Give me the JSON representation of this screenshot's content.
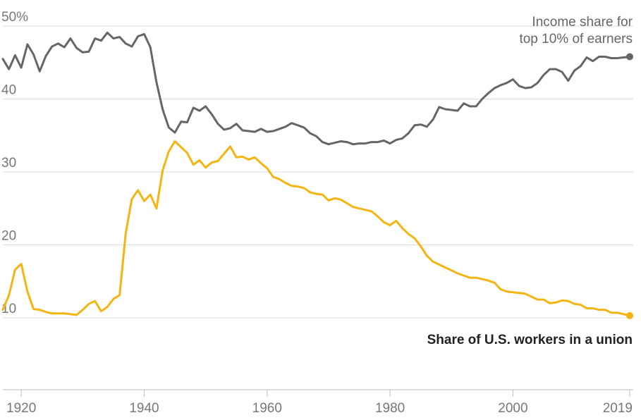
{
  "chart_data": {
    "type": "line",
    "title": "",
    "xlabel": "",
    "ylabel": "",
    "xlim": [
      1917,
      2019
    ],
    "ylim": [
      0,
      52
    ],
    "y_ticks": [
      {
        "value": 50,
        "label": "50%"
      },
      {
        "value": 40,
        "label": "40"
      },
      {
        "value": 30,
        "label": "30"
      },
      {
        "value": 20,
        "label": "20"
      },
      {
        "value": 10,
        "label": "10"
      }
    ],
    "x_ticks": [
      {
        "value": 1920,
        "label": "1920"
      },
      {
        "value": 1940,
        "label": "1940"
      },
      {
        "value": 1960,
        "label": "1960"
      },
      {
        "value": 1980,
        "label": "1980"
      },
      {
        "value": 2000,
        "label": "2000"
      },
      {
        "value": 2019,
        "label": "2019"
      }
    ],
    "grid": true,
    "series": [
      {
        "name": "Income share for top 10% of earners",
        "label_lines": [
          "Income share for",
          "top 10% of earners"
        ],
        "color": "#666666",
        "label_color": "#666666",
        "label_bold": false,
        "endpoint_marker": true,
        "x": [
          1917,
          1918,
          1919,
          1920,
          1921,
          1922,
          1923,
          1924,
          1925,
          1926,
          1927,
          1928,
          1929,
          1930,
          1931,
          1932,
          1933,
          1934,
          1935,
          1936,
          1937,
          1938,
          1939,
          1940,
          1941,
          1942,
          1943,
          1944,
          1945,
          1946,
          1947,
          1948,
          1949,
          1950,
          1951,
          1952,
          1953,
          1954,
          1955,
          1956,
          1957,
          1958,
          1959,
          1960,
          1961,
          1962,
          1963,
          1964,
          1965,
          1966,
          1967,
          1968,
          1969,
          1970,
          1971,
          1972,
          1973,
          1974,
          1975,
          1976,
          1977,
          1978,
          1979,
          1980,
          1981,
          1982,
          1983,
          1984,
          1985,
          1986,
          1987,
          1988,
          1989,
          1990,
          1991,
          1992,
          1993,
          1994,
          1995,
          1996,
          1997,
          1998,
          1999,
          2000,
          2001,
          2002,
          2003,
          2004,
          2005,
          2006,
          2007,
          2008,
          2009,
          2010,
          2011,
          2012,
          2013,
          2014,
          2015,
          2016,
          2017,
          2018,
          2019
        ],
        "values": [
          45.5,
          44.1,
          46,
          44.3,
          47.5,
          46.1,
          43.8,
          45.9,
          47.2,
          47.6,
          47.1,
          48.3,
          47.0,
          46.4,
          46.5,
          48.3,
          48.0,
          49.1,
          48.3,
          48.5,
          47.6,
          47.2,
          48.6,
          48.9,
          47.1,
          42.3,
          38.6,
          36.1,
          35.4,
          36.9,
          36.8,
          38.8,
          38.4,
          39.0,
          37.9,
          36.6,
          35.8,
          36.0,
          36.6,
          35.7,
          35.6,
          35.5,
          35.9,
          35.5,
          35.6,
          35.9,
          36.2,
          36.7,
          36.4,
          36.1,
          35.3,
          34.9,
          34.1,
          33.8,
          34.0,
          34.2,
          34.1,
          33.8,
          33.9,
          33.9,
          34.1,
          34.1,
          34.3,
          33.9,
          34.4,
          34.6,
          35.3,
          36.4,
          36.5,
          36.2,
          37.2,
          38.9,
          38.6,
          38.5,
          38.4,
          39.4,
          39.0,
          39.0,
          40.0,
          40.8,
          41.5,
          41.9,
          42.2,
          42.7,
          41.8,
          41.5,
          41.6,
          42.2,
          43.3,
          44.1,
          44.1,
          43.7,
          42.5,
          43.9,
          44.5,
          45.7,
          45.2,
          45.8,
          45.8,
          45.6,
          45.6,
          45.7,
          45.8
        ]
      },
      {
        "name": "Share of U.S. workers in a union",
        "label_lines": [
          "Share of U.S. workers in a union"
        ],
        "color": "#f4b514",
        "label_color": "#222222",
        "label_bold": true,
        "endpoint_marker": true,
        "x": [
          1917,
          1918,
          1919,
          1920,
          1921,
          1922,
          1923,
          1924,
          1925,
          1926,
          1927,
          1928,
          1929,
          1930,
          1931,
          1932,
          1933,
          1934,
          1935,
          1936,
          1937,
          1938,
          1939,
          1940,
          1941,
          1942,
          1943,
          1944,
          1945,
          1946,
          1947,
          1948,
          1949,
          1950,
          1951,
          1952,
          1953,
          1954,
          1955,
          1956,
          1957,
          1958,
          1959,
          1960,
          1961,
          1962,
          1963,
          1964,
          1965,
          1966,
          1967,
          1968,
          1969,
          1970,
          1971,
          1972,
          1973,
          1974,
          1975,
          1976,
          1977,
          1978,
          1979,
          1980,
          1981,
          1982,
          1983,
          1984,
          1985,
          1986,
          1987,
          1988,
          1989,
          1990,
          1991,
          1992,
          1993,
          1994,
          1995,
          1996,
          1997,
          1998,
          1999,
          2000,
          2001,
          2002,
          2003,
          2004,
          2005,
          2006,
          2007,
          2008,
          2009,
          2010,
          2011,
          2012,
          2013,
          2014,
          2015,
          2016,
          2017,
          2018,
          2019
        ],
        "values": [
          11.1,
          13.1,
          16.6,
          17.4,
          13.6,
          11.2,
          11.1,
          10.8,
          10.6,
          10.6,
          10.6,
          10.5,
          10.4,
          11.1,
          11.9,
          12.3,
          10.9,
          11.5,
          12.6,
          13.1,
          21.6,
          26.3,
          27.5,
          26.0,
          26.9,
          25.0,
          30.2,
          32.8,
          34.2,
          33.4,
          32.6,
          31.0,
          31.6,
          30.6,
          31.3,
          31.5,
          32.5,
          33.5,
          32.0,
          32.1,
          31.7,
          32.0,
          31.2,
          30.5,
          29.3,
          29.0,
          28.5,
          28.1,
          28.0,
          27.8,
          27.2,
          27.0,
          26.9,
          26.1,
          26.4,
          26.2,
          25.7,
          25.2,
          25.0,
          24.8,
          24.6,
          23.9,
          23.1,
          22.7,
          23.3,
          22.3,
          21.5,
          20.9,
          19.8,
          18.5,
          17.7,
          17.3,
          16.9,
          16.5,
          16.1,
          15.8,
          15.5,
          15.5,
          15.3,
          15.1,
          14.8,
          13.9,
          13.6,
          13.5,
          13.4,
          13.3,
          12.9,
          12.5,
          12.5,
          12.0,
          12.1,
          12.4,
          12.3,
          11.9,
          11.8,
          11.3,
          11.3,
          11.1,
          11.1,
          10.7,
          10.7,
          10.5,
          10.3
        ]
      }
    ]
  }
}
